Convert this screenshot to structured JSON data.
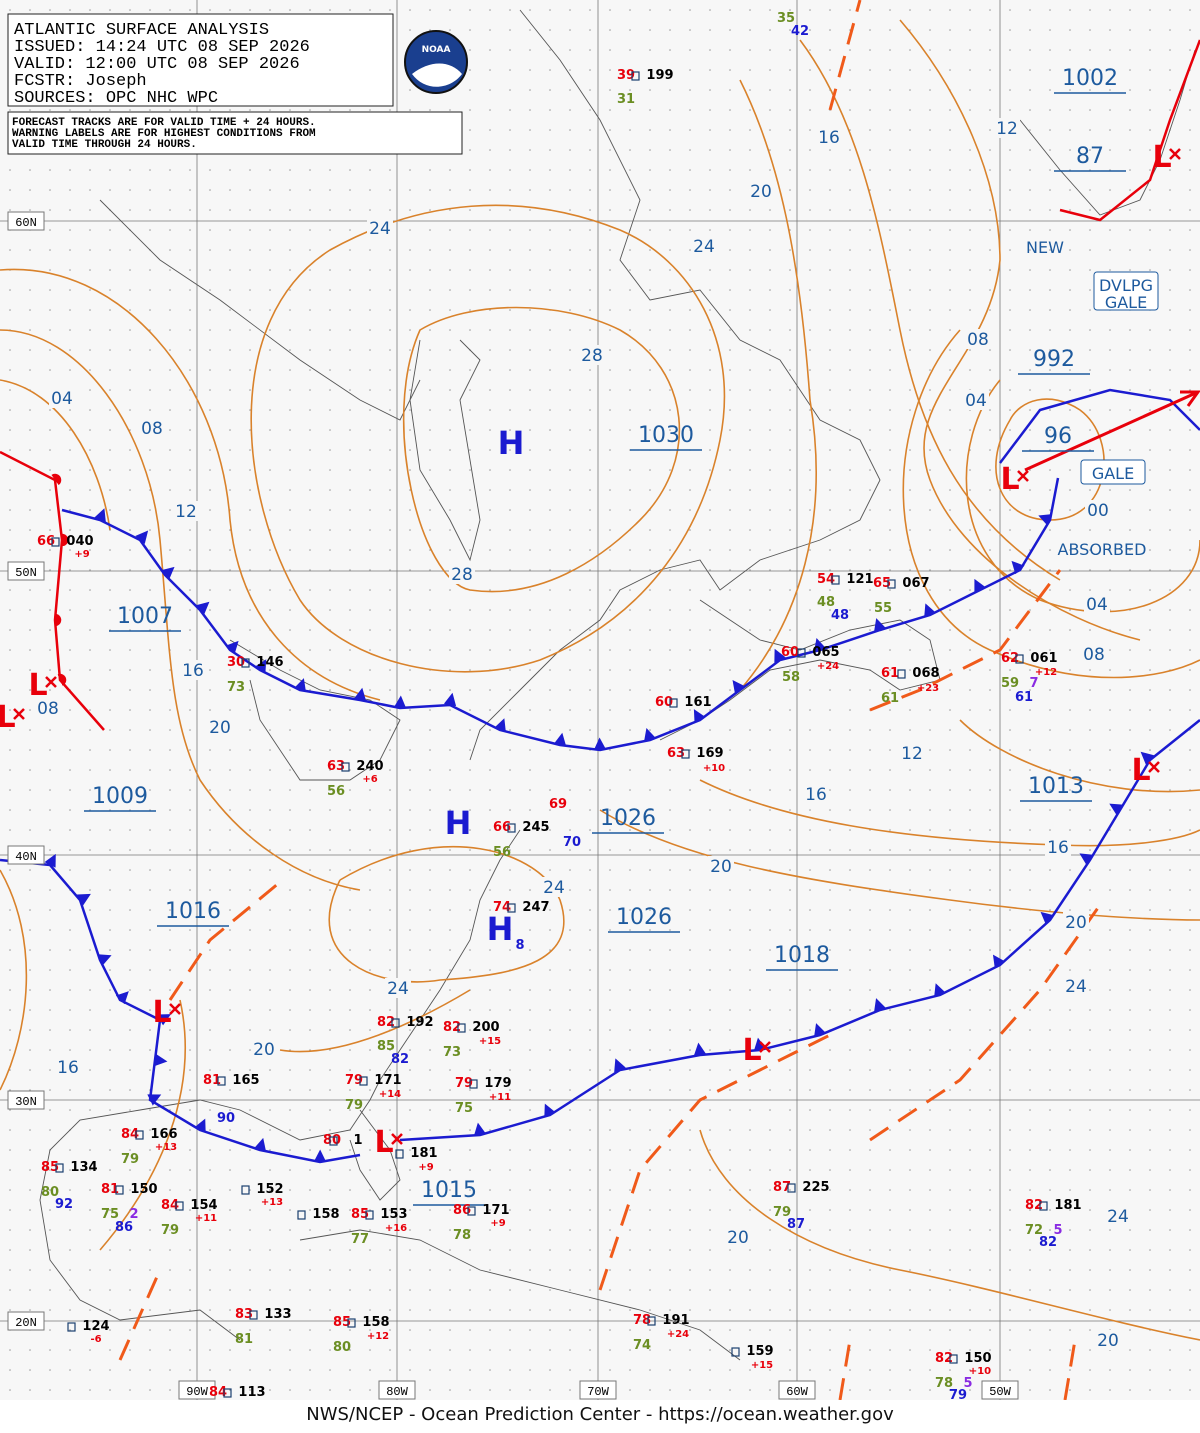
{
  "header": {
    "lines": [
      "ATLANTIC SURFACE ANALYSIS",
      "ISSUED: 14:24 UTC 08 SEP 2026",
      "VALID:  12:00 UTC 08 SEP 2026",
      "FCSTR:  Joseph",
      "SOURCES: OPC NHC WPC"
    ]
  },
  "note": {
    "lines": [
      "FORECAST TRACKS ARE FOR VALID TIME + 24 HOURS.",
      "WARNING LABELS ARE FOR HIGHEST CONDITIONS FROM",
      "VALID TIME THROUGH 24 HOURS."
    ]
  },
  "logo": "NOAA",
  "latitudes": [
    "60N",
    "50N",
    "40N",
    "30N",
    "20N"
  ],
  "longitudes": [
    "90W",
    "80W",
    "70W",
    "60W",
    "50W"
  ],
  "pressure_centers": [
    "1002",
    "87",
    "992",
    "96",
    "1030",
    "1026",
    "1026",
    "1007",
    "1009",
    "1016",
    "1018",
    "1013",
    "1015"
  ],
  "highs": [
    "H",
    "H",
    "H"
  ],
  "lows": [
    "L",
    "L",
    "L",
    "L",
    "L",
    "L",
    "L",
    "L"
  ],
  "isobar_labels": [
    "16",
    "12",
    "20",
    "24",
    "24",
    "28",
    "08",
    "04",
    "04",
    "08",
    "12",
    "28",
    "00",
    "04",
    "08",
    "16",
    "08",
    "20",
    "12",
    "16",
    "20",
    "16",
    "24",
    "20",
    "24",
    "24",
    "20",
    "16",
    "20",
    "24",
    "20"
  ],
  "warnings": [
    "NEW",
    "DVLPG",
    "GALE",
    "GALE",
    "ABSORBED"
  ],
  "station_colors": {
    "temp": "#e8000b",
    "pressure": "#000000",
    "dew": "#6b8e23",
    "sea": "#1b1bd0",
    "wave": "#8a2be2"
  },
  "stations": [
    {
      "text": "35",
      "kind": "dew"
    },
    {
      "text": "42",
      "kind": "sea"
    },
    {
      "text": "39",
      "kind": "temp"
    },
    {
      "text": "199",
      "kind": "pressure"
    },
    {
      "text": "31",
      "kind": "dew"
    },
    {
      "text": "66",
      "kind": "temp"
    },
    {
      "text": "040",
      "kind": "pressure"
    },
    {
      "text": "+9",
      "kind": "temp"
    },
    {
      "text": "30",
      "kind": "temp"
    },
    {
      "text": "146",
      "kind": "pressure"
    },
    {
      "text": "73",
      "kind": "dew"
    },
    {
      "text": "63",
      "kind": "temp"
    },
    {
      "text": "240",
      "kind": "pressure"
    },
    {
      "text": "+6",
      "kind": "temp"
    },
    {
      "text": "56",
      "kind": "dew"
    },
    {
      "text": "69",
      "kind": "temp"
    },
    {
      "text": "66",
      "kind": "temp"
    },
    {
      "text": "245",
      "kind": "pressure"
    },
    {
      "text": "70",
      "kind": "sea"
    },
    {
      "text": "56",
      "kind": "dew"
    },
    {
      "text": "74",
      "kind": "temp"
    },
    {
      "text": "247",
      "kind": "pressure"
    },
    {
      "text": "8",
      "kind": "sea"
    },
    {
      "text": "54",
      "kind": "temp"
    },
    {
      "text": "121",
      "kind": "pressure"
    },
    {
      "text": "48",
      "kind": "dew"
    },
    {
      "text": "48",
      "kind": "sea"
    },
    {
      "text": "65",
      "kind": "temp"
    },
    {
      "text": "067",
      "kind": "pressure"
    },
    {
      "text": "55",
      "kind": "dew"
    },
    {
      "text": "60",
      "kind": "temp"
    },
    {
      "text": "065",
      "kind": "pressure"
    },
    {
      "text": "+24",
      "kind": "temp"
    },
    {
      "text": "58",
      "kind": "dew"
    },
    {
      "text": "61",
      "kind": "temp"
    },
    {
      "text": "068",
      "kind": "pressure"
    },
    {
      "text": "+23",
      "kind": "temp"
    },
    {
      "text": "61",
      "kind": "dew"
    },
    {
      "text": "62",
      "kind": "temp"
    },
    {
      "text": "061",
      "kind": "pressure"
    },
    {
      "text": "+12",
      "kind": "temp"
    },
    {
      "text": "59",
      "kind": "dew"
    },
    {
      "text": "7",
      "kind": "wave"
    },
    {
      "text": "61",
      "kind": "sea"
    },
    {
      "text": "60",
      "kind": "temp"
    },
    {
      "text": "161",
      "kind": "pressure"
    },
    {
      "text": "63",
      "kind": "temp"
    },
    {
      "text": "169",
      "kind": "pressure"
    },
    {
      "text": "+10",
      "kind": "temp"
    },
    {
      "text": "82",
      "kind": "temp"
    },
    {
      "text": "192",
      "kind": "pressure"
    },
    {
      "text": "85",
      "kind": "dew"
    },
    {
      "text": "82",
      "kind": "sea"
    },
    {
      "text": "82",
      "kind": "temp"
    },
    {
      "text": "200",
      "kind": "pressure"
    },
    {
      "text": "+15",
      "kind": "temp"
    },
    {
      "text": "73",
      "kind": "dew"
    },
    {
      "text": "81",
      "kind": "temp"
    },
    {
      "text": "165",
      "kind": "pressure"
    },
    {
      "text": "90",
      "kind": "sea"
    },
    {
      "text": "79",
      "kind": "temp"
    },
    {
      "text": "171",
      "kind": "pressure"
    },
    {
      "text": "+14",
      "kind": "temp"
    },
    {
      "text": "79",
      "kind": "dew"
    },
    {
      "text": "79",
      "kind": "temp"
    },
    {
      "text": "179",
      "kind": "pressure"
    },
    {
      "text": "+11",
      "kind": "temp"
    },
    {
      "text": "75",
      "kind": "dew"
    },
    {
      "text": "84",
      "kind": "temp"
    },
    {
      "text": "166",
      "kind": "pressure"
    },
    {
      "text": "+13",
      "kind": "temp"
    },
    {
      "text": "79",
      "kind": "dew"
    },
    {
      "text": "85",
      "kind": "temp"
    },
    {
      "text": "134",
      "kind": "pressure"
    },
    {
      "text": "80",
      "kind": "dew"
    },
    {
      "text": "92",
      "kind": "sea"
    },
    {
      "text": "81",
      "kind": "temp"
    },
    {
      "text": "150",
      "kind": "pressure"
    },
    {
      "text": "75",
      "kind": "dew"
    },
    {
      "text": "2",
      "kind": "wave"
    },
    {
      "text": "86",
      "kind": "sea"
    },
    {
      "text": "84",
      "kind": "temp"
    },
    {
      "text": "154",
      "kind": "pressure"
    },
    {
      "text": "+11",
      "kind": "temp"
    },
    {
      "text": "79",
      "kind": "dew"
    },
    {
      "text": "152",
      "kind": "pressure"
    },
    {
      "text": "+13",
      "kind": "temp"
    },
    {
      "text": "158",
      "kind": "pressure"
    },
    {
      "text": "80",
      "kind": "temp"
    },
    {
      "text": "1",
      "kind": "pressure"
    },
    {
      "text": "181",
      "kind": "pressure"
    },
    {
      "text": "+9",
      "kind": "temp"
    },
    {
      "text": "85",
      "kind": "temp"
    },
    {
      "text": "153",
      "kind": "pressure"
    },
    {
      "text": "+16",
      "kind": "temp"
    },
    {
      "text": "77",
      "kind": "dew"
    },
    {
      "text": "86",
      "kind": "temp"
    },
    {
      "text": "171",
      "kind": "pressure"
    },
    {
      "text": "+9",
      "kind": "temp"
    },
    {
      "text": "78",
      "kind": "dew"
    },
    {
      "text": "87",
      "kind": "temp"
    },
    {
      "text": "225",
      "kind": "pressure"
    },
    {
      "text": "79",
      "kind": "dew"
    },
    {
      "text": "87",
      "kind": "sea"
    },
    {
      "text": "82",
      "kind": "temp"
    },
    {
      "text": "181",
      "kind": "pressure"
    },
    {
      "text": "72",
      "kind": "dew"
    },
    {
      "text": "5",
      "kind": "wave"
    },
    {
      "text": "82",
      "kind": "sea"
    },
    {
      "text": "124",
      "kind": "pressure"
    },
    {
      "text": "-6",
      "kind": "temp"
    },
    {
      "text": "83",
      "kind": "temp"
    },
    {
      "text": "133",
      "kind": "pressure"
    },
    {
      "text": "81",
      "kind": "dew"
    },
    {
      "text": "85",
      "kind": "temp"
    },
    {
      "text": "158",
      "kind": "pressure"
    },
    {
      "text": "+12",
      "kind": "temp"
    },
    {
      "text": "80",
      "kind": "dew"
    },
    {
      "text": "78",
      "kind": "temp"
    },
    {
      "text": "191",
      "kind": "pressure"
    },
    {
      "text": "+24",
      "kind": "temp"
    },
    {
      "text": "74",
      "kind": "dew"
    },
    {
      "text": "159",
      "kind": "pressure"
    },
    {
      "text": "+15",
      "kind": "temp"
    },
    {
      "text": "82",
      "kind": "temp"
    },
    {
      "text": "150",
      "kind": "pressure"
    },
    {
      "text": "+10",
      "kind": "temp"
    },
    {
      "text": "78",
      "kind": "dew"
    },
    {
      "text": "5",
      "kind": "wave"
    },
    {
      "text": "79",
      "kind": "sea"
    },
    {
      "text": "84",
      "kind": "temp"
    },
    {
      "text": "113",
      "kind": "pressure"
    }
  ],
  "footer": "NWS/NCEP - Ocean Prediction Center - https://ocean.weather.gov"
}
